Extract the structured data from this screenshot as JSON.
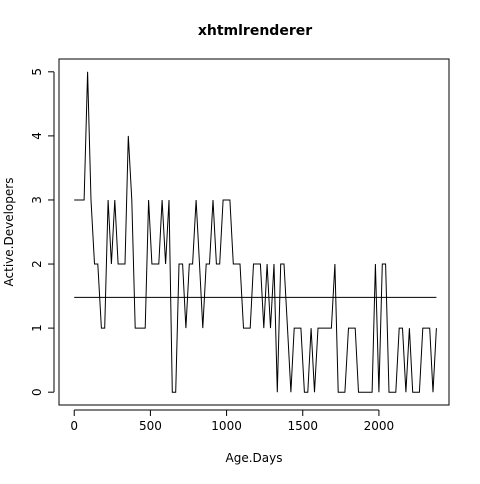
{
  "chart_data": {
    "type": "line",
    "title": "xhtmlrenderer",
    "xlabel": "Age.Days",
    "ylabel": "Active.Developers",
    "xlim": [
      -100,
      2460
    ],
    "ylim": [
      -0.2,
      5.2
    ],
    "x_ticks": [
      0,
      500,
      1000,
      1500,
      2000
    ],
    "y_ticks": [
      0,
      1,
      2,
      3,
      4,
      5
    ],
    "x_tick_labels": [
      "0",
      "500",
      "1000",
      "1500",
      "2000"
    ],
    "y_tick_labels": [
      "0",
      "1",
      "2",
      "3",
      "4",
      "5"
    ],
    "grid": false,
    "series": [
      {
        "x": [
          0,
          65,
          88,
          110,
          133,
          155,
          178,
          200,
          222,
          244,
          266,
          288,
          310,
          333,
          355,
          378,
          400,
          422,
          444,
          466,
          488,
          510,
          533,
          555,
          577,
          600,
          622,
          644,
          666,
          688,
          711,
          733,
          755,
          777,
          800,
          822,
          844,
          866,
          888,
          911,
          933,
          955,
          977,
          1000,
          1022,
          1044,
          1066,
          1088,
          1111,
          1133,
          1155,
          1177,
          1200,
          1222,
          1244,
          1266,
          1288,
          1311,
          1333,
          1355,
          1377,
          1400,
          1422,
          1444,
          1466,
          1488,
          1511,
          1533,
          1555,
          1577,
          1600,
          1622,
          1644,
          1666,
          1688,
          1711,
          1733,
          1755,
          1777,
          1800,
          1822,
          1844,
          1866,
          1888,
          1911,
          1933,
          1955,
          1977,
          2000,
          2022,
          2044,
          2066,
          2088,
          2111,
          2133,
          2155,
          2177,
          2200,
          2222,
          2244,
          2266,
          2288,
          2311,
          2333,
          2355,
          2377
        ],
        "y": [
          3,
          3,
          5,
          3,
          2,
          2,
          1,
          1,
          3,
          2,
          3,
          2,
          2,
          2,
          4,
          3,
          1,
          1,
          1,
          1,
          3,
          2,
          2,
          2,
          3,
          2,
          3,
          0,
          0,
          2,
          2,
          1,
          2,
          2,
          3,
          2,
          1,
          2,
          2,
          3,
          2,
          2,
          3,
          3,
          3,
          2,
          2,
          2,
          1,
          1,
          1,
          2,
          2,
          2,
          1,
          2,
          1,
          2,
          0,
          2,
          2,
          1,
          0,
          1,
          1,
          1,
          0,
          0,
          1,
          0,
          1,
          1,
          1,
          1,
          1,
          2,
          0,
          0,
          0,
          1,
          1,
          1,
          0,
          0,
          0,
          0,
          0,
          2,
          0,
          2,
          2,
          0,
          0,
          0,
          1,
          1,
          0,
          1,
          0,
          0,
          0,
          1,
          1,
          1,
          0,
          1
        ]
      },
      {
        "x": [
          0,
          2377
        ],
        "y": [
          1.48,
          1.48
        ]
      }
    ]
  }
}
